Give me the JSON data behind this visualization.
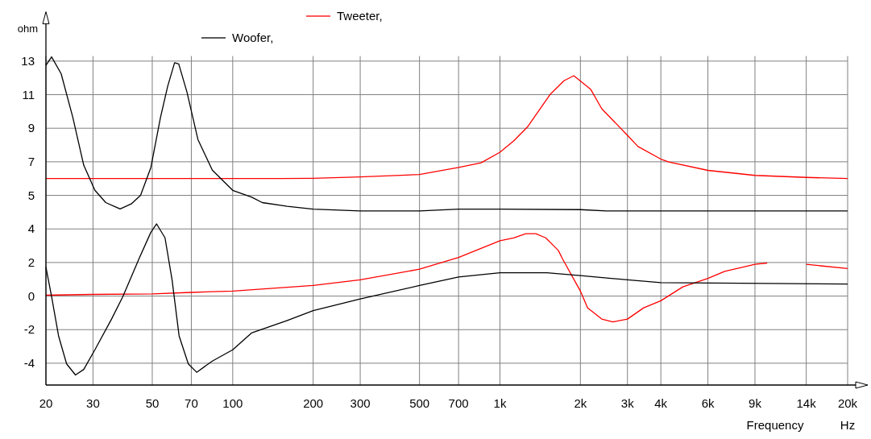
{
  "chart_data": {
    "type": "line",
    "xlabel": "Frequency",
    "ylabel": "ohm",
    "annotations": [
      "Hz"
    ],
    "log": "x",
    "grid": true,
    "legend": "top",
    "marker": "none",
    "line_style": "solid",
    "xlim": [
      20,
      20000
    ],
    "ylim": [
      -6.3,
      13.3
    ],
    "y2lim": [
      -5.3,
      14.3
    ],
    "xticks": [
      20,
      30,
      50,
      70,
      100,
      200,
      300,
      500,
      700,
      {
        "value": 1000,
        "label": "1k"
      },
      {
        "value": 2000,
        "label": "2k"
      },
      {
        "value": 3000,
        "label": "3k"
      },
      {
        "value": 4000,
        "label": "4k"
      },
      {
        "value": 6000,
        "label": "6k"
      },
      {
        "value": 9000,
        "label": "9k"
      },
      {
        "value": 14000,
        "label": "14k"
      },
      {
        "value": 20000,
        "label": "20k"
      }
    ],
    "yticks": [
      5,
      7,
      9,
      11,
      13
    ],
    "y2ticks": [
      -4,
      -2,
      0,
      2,
      4
    ],
    "series": [
      {
        "name": "Tweeter,",
        "color": "#ff0000",
        "x": [
          20,
          50,
          100,
          150,
          200,
          300,
          500,
          700,
          850,
          1000,
          1125,
          1268,
          1538,
          1735,
          1890,
          2183,
          2404,
          3000,
          3284,
          4000,
          4286,
          6000,
          9000,
          14000,
          20000
        ],
        "values": [
          6.0,
          6.0,
          6.0,
          6.0,
          6.02,
          6.1,
          6.24,
          6.66,
          6.94,
          7.57,
          8.24,
          9.08,
          11.0,
          11.83,
          12.13,
          11.33,
          10.16,
          8.58,
          7.91,
          7.16,
          6.99,
          6.49,
          6.19,
          6.07,
          6.0
        ]
      },
      {
        "name": "Woofer,",
        "color": "#000000",
        "x": [
          20,
          21,
          22.8,
          25.2,
          27.7,
          30.5,
          33.5,
          37.9,
          41.7,
          45.2,
          49.4,
          53.7,
          57.1,
          60.6,
          62.8,
          67.4,
          74.1,
          83.9,
          100,
          117.5,
          129,
          160,
          200,
          300,
          500,
          700,
          1000,
          2000,
          2500,
          20000
        ],
        "values": [
          12.75,
          13.25,
          12.25,
          9.66,
          6.8,
          5.3,
          4.57,
          4.19,
          4.49,
          5.0,
          6.66,
          9.66,
          11.5,
          12.9,
          12.83,
          11.16,
          8.33,
          6.5,
          5.3,
          4.9,
          4.57,
          4.35,
          4.18,
          4.07,
          4.07,
          4.18,
          4.18,
          4.15,
          4.07,
          4.07
        ]
      },
      {
        "color": "#ff0000",
        "axis": "y2",
        "x": [
          20,
          30,
          50,
          70,
          100,
          200,
          300,
          500,
          700,
          1000,
          1125,
          1250,
          1362,
          1483,
          1653,
          1714,
          2000,
          2128,
          2404,
          2644,
          3000,
          3451,
          4000,
          4834,
          6000,
          6934,
          9000,
          10000,
          11500,
          14000,
          20000
        ],
        "values": [
          0.05,
          0.1,
          0.13,
          0.22,
          0.3,
          0.63,
          0.97,
          1.6,
          2.3,
          3.3,
          3.47,
          3.72,
          3.72,
          3.47,
          2.72,
          2.22,
          0.3,
          -0.7,
          -1.37,
          -1.54,
          -1.37,
          -0.7,
          -0.28,
          0.55,
          1.05,
          1.47,
          1.89,
          1.97,
          null,
          1.89,
          1.64
        ]
      },
      {
        "color": "#000000",
        "axis": "y2",
        "x": [
          20,
          21,
          22.3,
          23.9,
          25.8,
          27.7,
          30.5,
          35.2,
          38.8,
          44.8,
          49.4,
          51.9,
          55.8,
          59.3,
          63,
          68.2,
          73.3,
          83.9,
          100,
          117.5,
          160,
          200,
          300,
          500,
          700,
          1000,
          1500,
          2000,
          3000,
          4000,
          20000
        ],
        "values": [
          1.72,
          -0.03,
          -2.37,
          -4.04,
          -4.7,
          -4.37,
          -3.2,
          -1.37,
          -0.03,
          2.3,
          3.8,
          4.3,
          3.47,
          0.97,
          -2.37,
          -4.04,
          -4.54,
          -3.87,
          -3.2,
          -2.2,
          -1.45,
          -0.87,
          -0.17,
          0.63,
          1.14,
          1.39,
          1.39,
          1.22,
          0.97,
          0.8,
          0.72
        ]
      }
    ]
  }
}
